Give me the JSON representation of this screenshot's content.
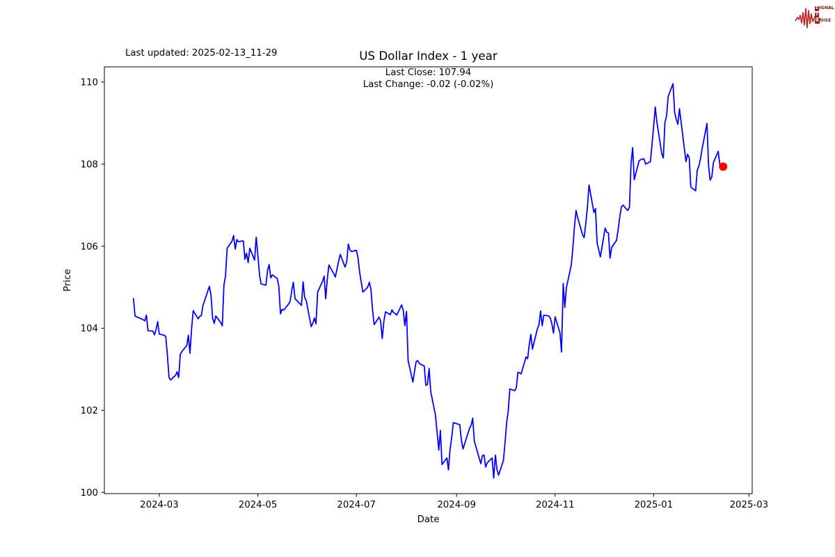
{
  "header": {
    "last_updated": "Last updated: 2025-02-13_11-29",
    "title": "US Dollar Index - 1 year",
    "subtitle_line1": "Last Close: 107.94",
    "subtitle_line2": "Last Change: -0.02 (-0.02%)"
  },
  "logo": {
    "name": "Signal 2 Noise",
    "word1_badge": "S",
    "word1_rest": "IGNAL",
    "word2_badge": "2",
    "word3_badge": "N",
    "word3_rest": "OISE",
    "waveform_color": "#c42020"
  },
  "chart_data": {
    "type": "line",
    "title": "US Dollar Index - 1 year",
    "xlabel": "Date",
    "ylabel": "Price",
    "last_close": 107.94,
    "last_change": "-0.02 (-0.02%)",
    "grid": false,
    "xlim": [
      "2024-01-27",
      "2025-03-03"
    ],
    "ylim": [
      99.97,
      110.37
    ],
    "x_ticks": [
      {
        "date": "2024-03-01",
        "label": "2024-03"
      },
      {
        "date": "2024-05-01",
        "label": "2024-05"
      },
      {
        "date": "2024-07-01",
        "label": "2024-07"
      },
      {
        "date": "2024-09-01",
        "label": "2024-09"
      },
      {
        "date": "2024-11-01",
        "label": "2024-11"
      },
      {
        "date": "2025-01-01",
        "label": "2025-01"
      },
      {
        "date": "2025-03-01",
        "label": "2025-03"
      }
    ],
    "y_ticks": [
      100,
      102,
      104,
      106,
      108,
      110
    ],
    "marker": {
      "color": "#ff0000",
      "radius": 6,
      "date": "2025-02-13",
      "value": 107.94
    },
    "series": [
      {
        "name": "US Dollar Index",
        "color": "#0000ff",
        "line_width": 1.8,
        "points": [
          [
            "2024-02-14",
            104.72
          ],
          [
            "2024-02-15",
            104.3
          ],
          [
            "2024-02-16",
            104.28
          ],
          [
            "2024-02-20",
            104.21
          ],
          [
            "2024-02-21",
            104.18
          ],
          [
            "2024-02-22",
            104.32
          ],
          [
            "2024-02-23",
            103.94
          ],
          [
            "2024-02-26",
            103.93
          ],
          [
            "2024-02-27",
            103.84
          ],
          [
            "2024-02-28",
            103.97
          ],
          [
            "2024-02-29",
            104.16
          ],
          [
            "2024-03-01",
            103.86
          ],
          [
            "2024-03-04",
            103.83
          ],
          [
            "2024-03-05",
            103.8
          ],
          [
            "2024-03-06",
            103.36
          ],
          [
            "2024-03-07",
            102.8
          ],
          [
            "2024-03-08",
            102.74
          ],
          [
            "2024-03-11",
            102.85
          ],
          [
            "2024-03-12",
            102.94
          ],
          [
            "2024-03-13",
            102.8
          ],
          [
            "2024-03-14",
            103.37
          ],
          [
            "2024-03-15",
            103.43
          ],
          [
            "2024-03-18",
            103.58
          ],
          [
            "2024-03-19",
            103.83
          ],
          [
            "2024-03-20",
            103.39
          ],
          [
            "2024-03-21",
            104.0
          ],
          [
            "2024-03-22",
            104.43
          ],
          [
            "2024-03-25",
            104.23
          ],
          [
            "2024-03-26",
            104.29
          ],
          [
            "2024-03-27",
            104.31
          ],
          [
            "2024-03-28",
            104.55
          ],
          [
            "2024-04-01",
            105.02
          ],
          [
            "2024-04-02",
            104.81
          ],
          [
            "2024-04-03",
            104.24
          ],
          [
            "2024-04-04",
            104.12
          ],
          [
            "2024-04-05",
            104.3
          ],
          [
            "2024-04-08",
            104.14
          ],
          [
            "2024-04-09",
            104.06
          ],
          [
            "2024-04-10",
            105.05
          ],
          [
            "2024-04-11",
            105.27
          ],
          [
            "2024-04-12",
            105.95
          ],
          [
            "2024-04-15",
            106.12
          ],
          [
            "2024-04-16",
            106.26
          ],
          [
            "2024-04-17",
            105.93
          ],
          [
            "2024-04-18",
            106.16
          ],
          [
            "2024-04-19",
            106.11
          ],
          [
            "2024-04-22",
            106.13
          ],
          [
            "2024-04-23",
            105.68
          ],
          [
            "2024-04-24",
            105.83
          ],
          [
            "2024-04-25",
            105.6
          ],
          [
            "2024-04-26",
            105.95
          ],
          [
            "2024-04-29",
            105.66
          ],
          [
            "2024-04-30",
            106.22
          ],
          [
            "2024-05-01",
            105.77
          ],
          [
            "2024-05-02",
            105.31
          ],
          [
            "2024-05-03",
            105.08
          ],
          [
            "2024-05-06",
            105.05
          ],
          [
            "2024-05-07",
            105.41
          ],
          [
            "2024-05-08",
            105.55
          ],
          [
            "2024-05-09",
            105.23
          ],
          [
            "2024-05-10",
            105.3
          ],
          [
            "2024-05-13",
            105.21
          ],
          [
            "2024-05-14",
            105.02
          ],
          [
            "2024-05-15",
            104.35
          ],
          [
            "2024-05-16",
            104.46
          ],
          [
            "2024-05-17",
            104.44
          ],
          [
            "2024-05-20",
            104.59
          ],
          [
            "2024-05-21",
            104.66
          ],
          [
            "2024-05-22",
            104.92
          ],
          [
            "2024-05-23",
            105.12
          ],
          [
            "2024-05-24",
            104.72
          ],
          [
            "2024-05-28",
            104.56
          ],
          [
            "2024-05-29",
            105.13
          ],
          [
            "2024-05-30",
            104.75
          ],
          [
            "2024-05-31",
            104.67
          ],
          [
            "2024-06-03",
            104.04
          ],
          [
            "2024-06-04",
            104.12
          ],
          [
            "2024-06-05",
            104.25
          ],
          [
            "2024-06-06",
            104.11
          ],
          [
            "2024-06-07",
            104.88
          ],
          [
            "2024-06-10",
            105.14
          ],
          [
            "2024-06-11",
            105.27
          ],
          [
            "2024-06-12",
            104.72
          ],
          [
            "2024-06-13",
            105.2
          ],
          [
            "2024-06-14",
            105.54
          ],
          [
            "2024-06-17",
            105.33
          ],
          [
            "2024-06-18",
            105.25
          ],
          [
            "2024-06-20",
            105.63
          ],
          [
            "2024-06-21",
            105.8
          ],
          [
            "2024-06-24",
            105.49
          ],
          [
            "2024-06-25",
            105.62
          ],
          [
            "2024-06-26",
            106.05
          ],
          [
            "2024-06-27",
            105.91
          ],
          [
            "2024-06-28",
            105.87
          ],
          [
            "2024-07-01",
            105.9
          ],
          [
            "2024-07-02",
            105.72
          ],
          [
            "2024-07-03",
            105.37
          ],
          [
            "2024-07-05",
            104.88
          ],
          [
            "2024-07-08",
            105.0
          ],
          [
            "2024-07-09",
            105.12
          ],
          [
            "2024-07-10",
            104.95
          ],
          [
            "2024-07-11",
            104.45
          ],
          [
            "2024-07-12",
            104.09
          ],
          [
            "2024-07-15",
            104.27
          ],
          [
            "2024-07-16",
            104.18
          ],
          [
            "2024-07-17",
            103.75
          ],
          [
            "2024-07-18",
            104.17
          ],
          [
            "2024-07-19",
            104.4
          ],
          [
            "2024-07-22",
            104.33
          ],
          [
            "2024-07-23",
            104.45
          ],
          [
            "2024-07-24",
            104.38
          ],
          [
            "2024-07-25",
            104.36
          ],
          [
            "2024-07-26",
            104.32
          ],
          [
            "2024-07-29",
            104.57
          ],
          [
            "2024-07-30",
            104.44
          ],
          [
            "2024-07-31",
            104.06
          ],
          [
            "2024-08-01",
            104.41
          ],
          [
            "2024-08-02",
            103.21
          ],
          [
            "2024-08-05",
            102.69
          ],
          [
            "2024-08-06",
            102.96
          ],
          [
            "2024-08-07",
            103.19
          ],
          [
            "2024-08-08",
            103.21
          ],
          [
            "2024-08-09",
            103.14
          ],
          [
            "2024-08-12",
            103.08
          ],
          [
            "2024-08-13",
            102.61
          ],
          [
            "2024-08-14",
            102.63
          ],
          [
            "2024-08-15",
            103.02
          ],
          [
            "2024-08-16",
            102.46
          ],
          [
            "2024-08-19",
            101.87
          ],
          [
            "2024-08-20",
            101.44
          ],
          [
            "2024-08-21",
            101.03
          ],
          [
            "2024-08-22",
            101.51
          ],
          [
            "2024-08-23",
            100.68
          ],
          [
            "2024-08-26",
            100.84
          ],
          [
            "2024-08-27",
            100.55
          ],
          [
            "2024-08-28",
            101.05
          ],
          [
            "2024-08-29",
            101.34
          ],
          [
            "2024-08-30",
            101.7
          ],
          [
            "2024-09-03",
            101.65
          ],
          [
            "2024-09-04",
            101.27
          ],
          [
            "2024-09-05",
            101.06
          ],
          [
            "2024-09-06",
            101.18
          ],
          [
            "2024-09-09",
            101.56
          ],
          [
            "2024-09-10",
            101.63
          ],
          [
            "2024-09-11",
            101.81
          ],
          [
            "2024-09-12",
            101.25
          ],
          [
            "2024-09-13",
            101.11
          ],
          [
            "2024-09-16",
            100.7
          ],
          [
            "2024-09-17",
            100.9
          ],
          [
            "2024-09-18",
            100.91
          ],
          [
            "2024-09-19",
            100.62
          ],
          [
            "2024-09-20",
            100.72
          ],
          [
            "2024-09-23",
            100.84
          ],
          [
            "2024-09-24",
            100.35
          ],
          [
            "2024-09-25",
            100.91
          ],
          [
            "2024-09-26",
            100.56
          ],
          [
            "2024-09-27",
            100.42
          ],
          [
            "2024-09-30",
            100.78
          ],
          [
            "2024-10-01",
            101.21
          ],
          [
            "2024-10-02",
            101.69
          ],
          [
            "2024-10-03",
            101.98
          ],
          [
            "2024-10-04",
            102.52
          ],
          [
            "2024-10-07",
            102.48
          ],
          [
            "2024-10-08",
            102.55
          ],
          [
            "2024-10-09",
            102.93
          ],
          [
            "2024-10-10",
            102.91
          ],
          [
            "2024-10-11",
            102.89
          ],
          [
            "2024-10-14",
            103.3
          ],
          [
            "2024-10-15",
            103.26
          ],
          [
            "2024-10-16",
            103.6
          ],
          [
            "2024-10-17",
            103.85
          ],
          [
            "2024-10-18",
            103.49
          ],
          [
            "2024-10-21",
            103.98
          ],
          [
            "2024-10-22",
            104.08
          ],
          [
            "2024-10-23",
            104.42
          ],
          [
            "2024-10-24",
            104.06
          ],
          [
            "2024-10-25",
            104.32
          ],
          [
            "2024-10-28",
            104.3
          ],
          [
            "2024-10-29",
            104.25
          ],
          [
            "2024-10-30",
            104.11
          ],
          [
            "2024-10-31",
            103.88
          ],
          [
            "2024-11-01",
            104.28
          ],
          [
            "2024-11-04",
            103.89
          ],
          [
            "2024-11-05",
            103.42
          ],
          [
            "2024-11-06",
            105.09
          ],
          [
            "2024-11-07",
            104.51
          ],
          [
            "2024-11-08",
            104.99
          ],
          [
            "2024-11-11",
            105.54
          ],
          [
            "2024-11-12",
            105.96
          ],
          [
            "2024-11-13",
            106.48
          ],
          [
            "2024-11-14",
            106.87
          ],
          [
            "2024-11-15",
            106.69
          ],
          [
            "2024-11-18",
            106.28
          ],
          [
            "2024-11-19",
            106.21
          ],
          [
            "2024-11-20",
            106.56
          ],
          [
            "2024-11-21",
            106.95
          ],
          [
            "2024-11-22",
            107.49
          ],
          [
            "2024-11-25",
            106.82
          ],
          [
            "2024-11-26",
            106.92
          ],
          [
            "2024-11-27",
            106.08
          ],
          [
            "2024-11-29",
            105.74
          ],
          [
            "2024-12-02",
            106.44
          ],
          [
            "2024-12-03",
            106.34
          ],
          [
            "2024-12-04",
            106.32
          ],
          [
            "2024-12-05",
            105.71
          ],
          [
            "2024-12-06",
            105.97
          ],
          [
            "2024-12-09",
            106.14
          ],
          [
            "2024-12-10",
            106.4
          ],
          [
            "2024-12-11",
            106.7
          ],
          [
            "2024-12-12",
            106.95
          ],
          [
            "2024-12-13",
            107.0
          ],
          [
            "2024-12-16",
            106.87
          ],
          [
            "2024-12-17",
            106.95
          ],
          [
            "2024-12-18",
            108.02
          ],
          [
            "2024-12-19",
            108.4
          ],
          [
            "2024-12-20",
            107.62
          ],
          [
            "2024-12-23",
            108.08
          ],
          [
            "2024-12-24",
            108.11
          ],
          [
            "2024-12-26",
            108.13
          ],
          [
            "2024-12-27",
            108.0
          ],
          [
            "2024-12-30",
            108.06
          ],
          [
            "2024-12-31",
            108.49
          ],
          [
            "2025-01-02",
            109.39
          ],
          [
            "2025-01-03",
            109.03
          ],
          [
            "2025-01-06",
            108.26
          ],
          [
            "2025-01-07",
            108.15
          ],
          [
            "2025-01-08",
            109.02
          ],
          [
            "2025-01-09",
            109.18
          ],
          [
            "2025-01-10",
            109.65
          ],
          [
            "2025-01-13",
            109.96
          ],
          [
            "2025-01-14",
            109.25
          ],
          [
            "2025-01-15",
            109.09
          ],
          [
            "2025-01-16",
            108.97
          ],
          [
            "2025-01-17",
            109.35
          ],
          [
            "2025-01-21",
            108.06
          ],
          [
            "2025-01-22",
            108.24
          ],
          [
            "2025-01-23",
            108.16
          ],
          [
            "2025-01-24",
            107.44
          ],
          [
            "2025-01-27",
            107.35
          ],
          [
            "2025-01-28",
            107.86
          ],
          [
            "2025-01-29",
            107.95
          ],
          [
            "2025-01-30",
            108.13
          ],
          [
            "2025-01-31",
            108.37
          ],
          [
            "2025-02-03",
            108.99
          ],
          [
            "2025-02-04",
            107.96
          ],
          [
            "2025-02-05",
            107.61
          ],
          [
            "2025-02-06",
            107.69
          ],
          [
            "2025-02-07",
            108.04
          ],
          [
            "2025-02-10",
            108.31
          ],
          [
            "2025-02-11",
            107.97
          ],
          [
            "2025-02-12",
            107.96
          ],
          [
            "2025-02-13",
            107.94
          ]
        ]
      }
    ]
  }
}
